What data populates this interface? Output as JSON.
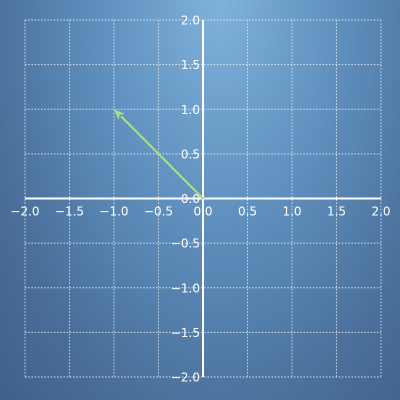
{
  "chart_data": {
    "type": "line",
    "title": "",
    "xlabel": "",
    "ylabel": "",
    "xlim": [
      -2.0,
      2.0
    ],
    "ylim": [
      -2.0,
      2.0
    ],
    "grid": true,
    "x_ticks": [
      {
        "value": -2.0,
        "label": "−2.0"
      },
      {
        "value": -1.5,
        "label": "−1.5"
      },
      {
        "value": -1.0,
        "label": "−1.0"
      },
      {
        "value": -0.5,
        "label": "−0.5"
      },
      {
        "value": 0.0,
        "label": "0.0"
      },
      {
        "value": 0.5,
        "label": "0.5"
      },
      {
        "value": 1.0,
        "label": "1.0"
      },
      {
        "value": 1.5,
        "label": "1.5"
      },
      {
        "value": 2.0,
        "label": "2.0"
      }
    ],
    "y_ticks": [
      {
        "value": 2.0,
        "label": "2.0"
      },
      {
        "value": 1.5,
        "label": "1.5"
      },
      {
        "value": 1.0,
        "label": "1.0"
      },
      {
        "value": 0.5,
        "label": "0.5"
      },
      {
        "value": 0.0,
        "label": "0.0"
      },
      {
        "value": -0.5,
        "label": "−0.5"
      },
      {
        "value": -1.0,
        "label": "−1.0"
      },
      {
        "value": -1.5,
        "label": "−1.5"
      },
      {
        "value": -2.0,
        "label": "−2.0"
      }
    ],
    "vectors": [
      {
        "from": [
          0.0,
          0.0
        ],
        "to": [
          -1.0,
          1.0
        ],
        "color": "#a8dc8a"
      }
    ]
  },
  "colors": {
    "axis": "#ffffff",
    "grid": "#e6eef7",
    "vector": "#a8dc8a",
    "background_top": "#7fb2db",
    "background_bottom": "#40608a"
  }
}
